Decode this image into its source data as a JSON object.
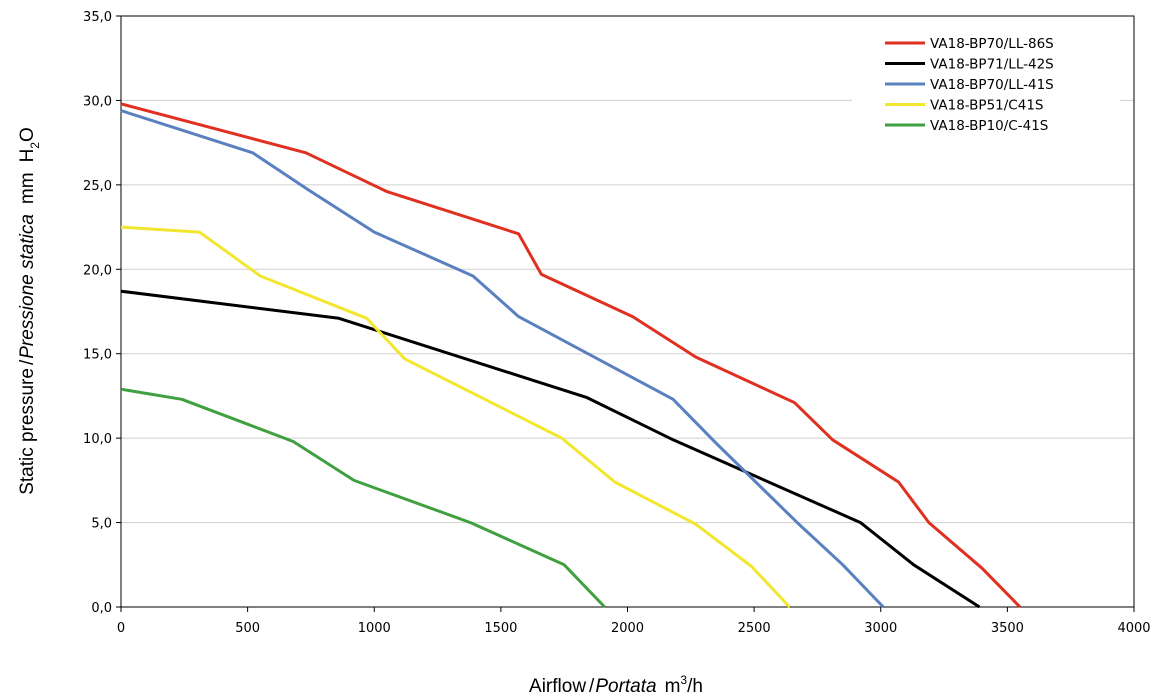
{
  "chart_data": {
    "type": "line",
    "title": "",
    "xlabel": {
      "prefix": "Airflow",
      "sep": "/",
      "italic": "Portata",
      "unit_base": "m",
      "unit_sup": "3",
      "unit_tail": "/h"
    },
    "ylabel": {
      "prefix": "Static pressure",
      "sep": "/",
      "italic": "Pressione statica",
      "unit": "mm",
      "unit_h": "H",
      "unit_sub": "2",
      "unit_o": "O"
    },
    "xlim": [
      0,
      4000
    ],
    "ylim": [
      0,
      35
    ],
    "x_ticks": [
      "0",
      "500",
      "1000",
      "1500",
      "2000",
      "2500",
      "3000",
      "3500",
      "4000"
    ],
    "y_ticks": [
      "0,0",
      "5,0",
      "10,0",
      "15,0",
      "20,0",
      "25,0",
      "30,0",
      "35,0"
    ],
    "grid": "horizontal",
    "legend_position": "top-right",
    "series": [
      {
        "name": "VA18-BP70/LL-86S",
        "color": "#e03020",
        "points": [
          [
            0,
            29.8
          ],
          [
            730,
            26.9
          ],
          [
            1050,
            24.6
          ],
          [
            1570,
            22.1
          ],
          [
            1660,
            19.7
          ],
          [
            2020,
            17.2
          ],
          [
            2270,
            14.8
          ],
          [
            2660,
            12.1
          ],
          [
            2810,
            9.9
          ],
          [
            3070,
            7.4
          ],
          [
            3190,
            5.0
          ],
          [
            3400,
            2.3
          ],
          [
            3550,
            0.0
          ]
        ]
      },
      {
        "name": "VA18-BP71/LL-42S",
        "color": "#000000",
        "points": [
          [
            0,
            18.7
          ],
          [
            860,
            17.1
          ],
          [
            1840,
            12.4
          ],
          [
            2180,
            9.9
          ],
          [
            2920,
            5.0
          ],
          [
            3130,
            2.5
          ],
          [
            3390,
            0.0
          ]
        ]
      },
      {
        "name": "VA18-BP70/LL-41S",
        "color": "#5a80c0",
        "points": [
          [
            0,
            29.4
          ],
          [
            520,
            26.9
          ],
          [
            740,
            24.7
          ],
          [
            1000,
            22.2
          ],
          [
            1390,
            19.6
          ],
          [
            1570,
            17.2
          ],
          [
            2180,
            12.3
          ],
          [
            2350,
            9.7
          ],
          [
            2670,
            5.0
          ],
          [
            2850,
            2.5
          ],
          [
            3010,
            0.0
          ]
        ]
      },
      {
        "name": "VA18-BP51/C41S",
        "color": "#f2e62e",
        "points": [
          [
            0,
            22.5
          ],
          [
            310,
            22.2
          ],
          [
            550,
            19.6
          ],
          [
            970,
            17.1
          ],
          [
            1120,
            14.7
          ],
          [
            1740,
            10.0
          ],
          [
            1950,
            7.4
          ],
          [
            2270,
            4.9
          ],
          [
            2490,
            2.4
          ],
          [
            2640,
            0.0
          ]
        ]
      },
      {
        "name": "VA18-BP10/C-41S",
        "color": "#40a040",
        "points": [
          [
            0,
            12.9
          ],
          [
            240,
            12.3
          ],
          [
            680,
            9.8
          ],
          [
            920,
            7.5
          ],
          [
            1380,
            5.0
          ],
          [
            1750,
            2.5
          ],
          [
            1910,
            0.0
          ]
        ]
      }
    ]
  }
}
